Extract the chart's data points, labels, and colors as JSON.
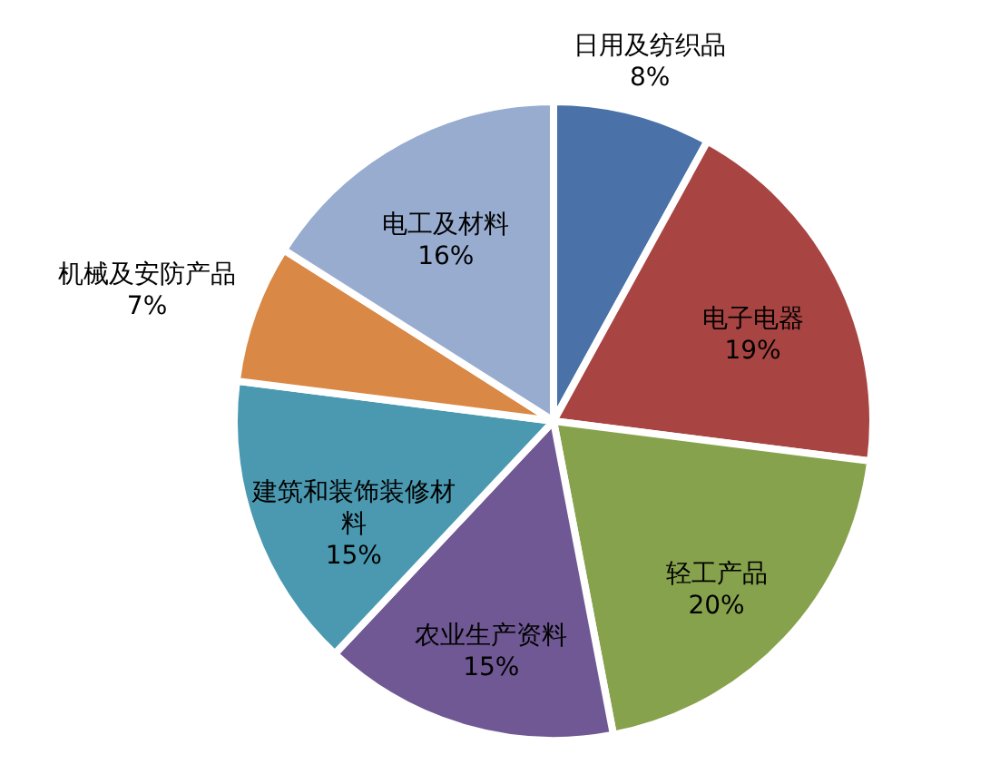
{
  "chart_data": {
    "type": "pie",
    "categories": [
      "日用及纺织品",
      "电子电器",
      "轻工产品",
      "农业生产资料",
      "建筑和装饰装修材料",
      "机械及安防产品",
      "电工及材料"
    ],
    "values": [
      8,
      19,
      20,
      15,
      15,
      7,
      16
    ],
    "value_labels": [
      "8%",
      "19%",
      "20%",
      "15%",
      "15%",
      "7%",
      "16%"
    ],
    "colors": [
      "#4a72a8",
      "#a84442",
      "#87a24c",
      "#6f5893",
      "#4a99b0",
      "#d98845",
      "#98acd0"
    ]
  }
}
